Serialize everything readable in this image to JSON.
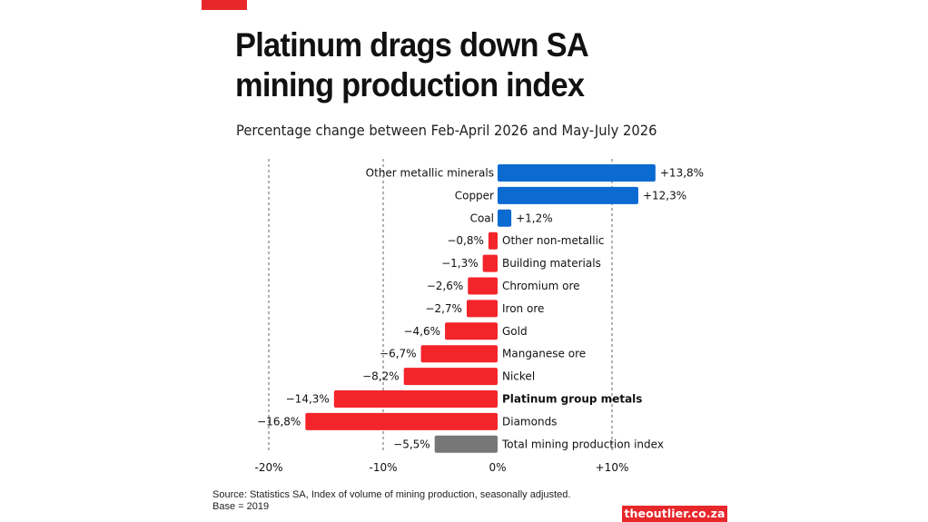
{
  "header": {
    "title": "Platinum drags down SA mining production index",
    "subtitle": "Percentage change between Feb-April 2026 and May-July 2026"
  },
  "footer": {
    "source_line1": "Source: Statistics SA, Index of volume of mining production,  seasonally adjusted.",
    "source_line2": "Base = 2019",
    "brand": "theoutlier.co.za"
  },
  "colors": {
    "positive": "#0b6bd1",
    "negative": "#f4242b",
    "total": "#777777",
    "accent": "#e8272b"
  },
  "chart_data": {
    "type": "bar",
    "orientation": "horizontal",
    "xlim": [
      -20,
      10
    ],
    "xticks": [
      -20,
      -10,
      0,
      10
    ],
    "xtick_labels": [
      "-20%",
      "-10%",
      "0%",
      "+10%"
    ],
    "grid": "vertical dashed",
    "categories": [
      "Other metallic minerals",
      "Copper",
      "Coal",
      "Other non-metallic",
      "Building materials",
      "Chromium ore",
      "Iron ore",
      "Gold",
      "Manganese ore",
      "Nickel",
      "Platinum group metals",
      "Diamonds",
      "Total mining production index"
    ],
    "values": [
      13.8,
      12.3,
      1.2,
      -0.8,
      -1.3,
      -2.6,
      -2.7,
      -4.6,
      -6.7,
      -8.2,
      -14.3,
      -16.8,
      -5.5
    ],
    "value_labels": [
      "+13,8%",
      "+12,3%",
      "+1,2%",
      "−0,8%",
      "−1,3%",
      "−2,6%",
      "−2,7%",
      "−4,6%",
      "−6,7%",
      "−8,2%",
      "−14,3%",
      "−16,8%",
      "−5,5%"
    ],
    "highlighted": "Platinum group metals",
    "total_category": "Total mining production index"
  }
}
